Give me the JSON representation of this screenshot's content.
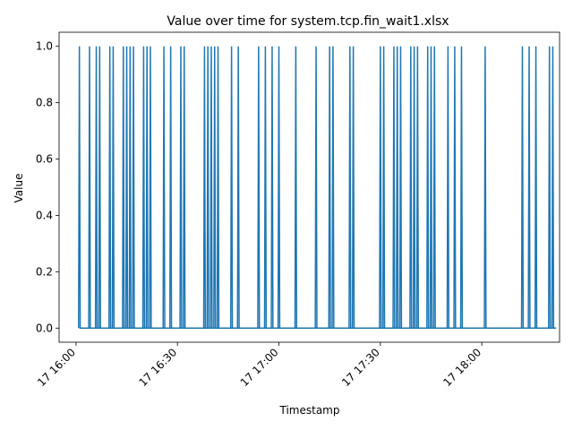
{
  "chart_data": {
    "type": "line",
    "title": "Value over time for system.tcp.fin_wait1.xlsx",
    "xlabel": "Timestamp",
    "ylabel": "Value",
    "xlim": [
      "17 15:55",
      "17 18:23"
    ],
    "ylim": [
      -0.05,
      1.05
    ],
    "grid": false,
    "x_ticks": [
      "17 16:00",
      "17 16:30",
      "17 17:00",
      "17 17:30",
      "17 18:00"
    ],
    "y_ticks": [
      "0.0",
      "0.2",
      "0.4",
      "0.6",
      "0.8",
      "1.0"
    ],
    "series": [
      {
        "color": "#1f77b4",
        "x": [
          "17 16:01",
          "17 16:04",
          "17 16:06",
          "17 16:07",
          "17 16:10",
          "17 16:11",
          "17 16:14",
          "17 16:15",
          "17 16:16",
          "17 16:17",
          "17 16:20",
          "17 16:21",
          "17 16:22",
          "17 16:26",
          "17 16:28",
          "17 16:31",
          "17 16:32",
          "17 16:38",
          "17 16:39",
          "17 16:40",
          "17 16:41",
          "17 16:42",
          "17 16:46",
          "17 16:48",
          "17 16:54",
          "17 16:56",
          "17 16:58",
          "17 17:00",
          "17 17:05",
          "17 17:11",
          "17 17:15",
          "17 17:16",
          "17 17:21",
          "17 17:22",
          "17 17:30",
          "17 17:31",
          "17 17:34",
          "17 17:35",
          "17 17:36",
          "17 17:39",
          "17 17:40",
          "17 17:41",
          "17 17:44",
          "17 17:45",
          "17 17:46",
          "17 17:50",
          "17 17:52",
          "17 17:54",
          "17 18:01",
          "17 18:12",
          "17 18:14",
          "17 18:16",
          "17 18:20",
          "17 18:21"
        ],
        "values": [
          1,
          1,
          1,
          1,
          1,
          1,
          1,
          1,
          1,
          1,
          1,
          1,
          1,
          1,
          1,
          1,
          1,
          1,
          1,
          1,
          1,
          1,
          1,
          1,
          1,
          1,
          1,
          1,
          1,
          1,
          1,
          1,
          1,
          1,
          1,
          1,
          1,
          1,
          1,
          1,
          1,
          1,
          1,
          1,
          1,
          1,
          1,
          1,
          1,
          1,
          1,
          1,
          1,
          1
        ],
        "baseline": 0,
        "baseline_x": [
          "17 16:01",
          "17 18:22"
        ]
      }
    ]
  }
}
